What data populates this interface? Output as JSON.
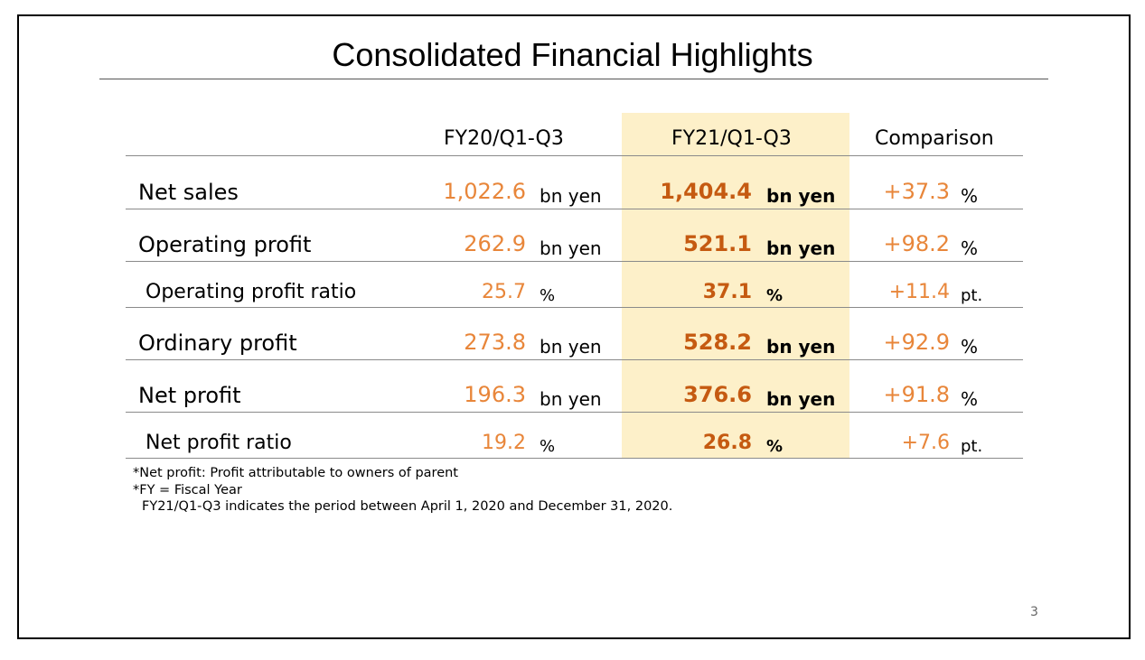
{
  "title": "Consolidated Financial Highlights",
  "accent_colors": {
    "prior_value": "#e8863a",
    "current_value": "#c55a11",
    "highlight_fill": "#fdf0c9"
  },
  "columns": {
    "prev": "FY20/Q1-Q3",
    "curr": "FY21/Q1-Q3",
    "comp": "Comparison"
  },
  "rows": [
    {
      "label": "Net sales",
      "prev_value": "1,022.6",
      "prev_unit": "bn yen",
      "curr_value": "1,404.4",
      "curr_unit": "bn yen",
      "comp_value": "+37.3",
      "comp_unit": "%"
    },
    {
      "label": "Operating profit",
      "prev_value": "262.9",
      "prev_unit": "bn yen",
      "curr_value": "521.1",
      "curr_unit": "bn yen",
      "comp_value": "+98.2",
      "comp_unit": "%"
    },
    {
      "label": "Operating profit ratio",
      "prev_value": "25.7",
      "prev_unit": "%",
      "curr_value": "37.1",
      "curr_unit": "%",
      "comp_value": "+11.4",
      "comp_unit": "pt."
    },
    {
      "label": "Ordinary profit",
      "prev_value": "273.8",
      "prev_unit": "bn yen",
      "curr_value": "528.2",
      "curr_unit": "bn yen",
      "comp_value": "+92.9",
      "comp_unit": "%"
    },
    {
      "label": "Net profit",
      "prev_value": "196.3",
      "prev_unit": "bn yen",
      "curr_value": "376.6",
      "curr_unit": "bn yen",
      "comp_value": "+91.8",
      "comp_unit": "%"
    },
    {
      "label": "Net profit ratio",
      "prev_value": "19.2",
      "prev_unit": "%",
      "curr_value": "26.8",
      "curr_unit": "%",
      "comp_value": "+7.6",
      "comp_unit": "pt."
    }
  ],
  "notes": [
    "*Net profit: Profit attributable to owners of parent",
    "*FY = Fiscal Year",
    "FY21/Q1-Q3 indicates the period between April 1, 2020 and December 31, 2020."
  ],
  "page_number": "3"
}
